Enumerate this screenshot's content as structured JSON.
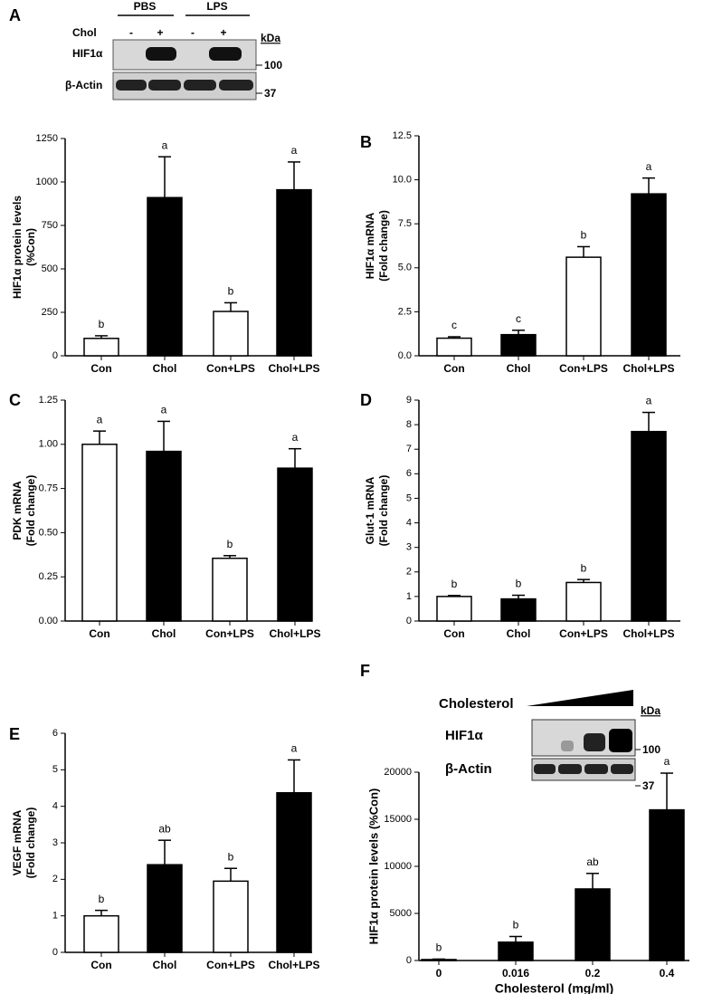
{
  "chart_data": [
    {
      "type": "bar",
      "panel": "A",
      "ylabel": [
        "HIF1α protein levels",
        "(%Con)"
      ],
      "categories": [
        "Con",
        "Chol",
        "Con+LPS",
        "Chol+LPS"
      ],
      "values": [
        100,
        910,
        255,
        955
      ],
      "errors": [
        15,
        235,
        50,
        160
      ],
      "annotations": [
        "b",
        "a",
        "b",
        "a"
      ],
      "colors": [
        "#ffffff",
        "#000000",
        "#ffffff",
        "#000000"
      ],
      "ylim": [
        0,
        1250
      ],
      "yticks": [
        0,
        250,
        500,
        750,
        1000,
        1250
      ]
    },
    {
      "type": "bar",
      "panel": "B",
      "ylabel": [
        "HIF1α mRNA",
        "(Fold change)"
      ],
      "categories": [
        "Con",
        "Chol",
        "Con+LPS",
        "Chol+LPS"
      ],
      "values": [
        1.0,
        1.2,
        5.6,
        9.2
      ],
      "errors": [
        0.08,
        0.25,
        0.6,
        0.9
      ],
      "annotations": [
        "c",
        "c",
        "b",
        "a"
      ],
      "colors": [
        "#ffffff",
        "#000000",
        "#ffffff",
        "#000000"
      ],
      "ylim": [
        0,
        12.5
      ],
      "yticks": [
        {
          "value": 0,
          "label": "0.0"
        },
        2.5,
        {
          "value": 5,
          "label": "5.0"
        },
        7.5,
        {
          "value": 10,
          "label": "10.0"
        },
        12.5
      ]
    },
    {
      "type": "bar",
      "panel": "C",
      "ylabel": [
        "PDK mRNA",
        "(Fold change)"
      ],
      "categories": [
        "Con",
        "Chol",
        "Con+LPS",
        "Chol+LPS"
      ],
      "values": [
        1.0,
        0.96,
        0.355,
        0.865
      ],
      "errors": [
        0.075,
        0.17,
        0.015,
        0.11
      ],
      "annotations": [
        "a",
        "a",
        "b",
        "a"
      ],
      "colors": [
        "#ffffff",
        "#000000",
        "#ffffff",
        "#000000"
      ],
      "ylim": [
        0,
        1.25
      ],
      "yticks": [
        {
          "value": 0,
          "label": "0.00"
        },
        0.25,
        {
          "value": 0.5,
          "label": "0.50"
        },
        0.75,
        {
          "value": 1,
          "label": "1.00"
        },
        1.25
      ]
    },
    {
      "type": "bar",
      "panel": "D",
      "ylabel": [
        "Glut-1 mRNA",
        "(Fold change)"
      ],
      "categories": [
        "Con",
        "Chol",
        "Con+LPS",
        "Chol+LPS"
      ],
      "values": [
        1.0,
        0.9,
        1.57,
        7.72
      ],
      "errors": [
        0.04,
        0.15,
        0.12,
        0.78
      ],
      "annotations": [
        "b",
        "b",
        "b",
        "a"
      ],
      "colors": [
        "#ffffff",
        "#000000",
        "#ffffff",
        "#000000"
      ],
      "ylim": [
        0,
        9
      ],
      "yticks": [
        0,
        1,
        2,
        3,
        4,
        5,
        6,
        7,
        8,
        9
      ]
    },
    {
      "type": "bar",
      "panel": "E",
      "ylabel": [
        "VEGF mRNA",
        "(Fold change)"
      ],
      "categories": [
        "Con",
        "Chol",
        "Con+LPS",
        "Chol+LPS"
      ],
      "values": [
        1.0,
        2.4,
        1.95,
        4.37
      ],
      "errors": [
        0.15,
        0.67,
        0.35,
        0.9
      ],
      "annotations": [
        "b",
        "ab",
        "b",
        "a"
      ],
      "colors": [
        "#ffffff",
        "#000000",
        "#ffffff",
        "#000000"
      ],
      "ylim": [
        0,
        6
      ],
      "yticks": [
        0,
        1,
        2,
        3,
        4,
        5,
        6
      ]
    },
    {
      "type": "bar",
      "panel": "F",
      "ylabel": [
        "HIF1α protein levels (%Con)"
      ],
      "xlabel": "Cholesterol (mg/ml)",
      "categories": [
        "0",
        "0.016",
        "0.2",
        "0.4"
      ],
      "values": [
        100,
        1950,
        7600,
        16000
      ],
      "errors": [
        50,
        600,
        1650,
        3900
      ],
      "annotations": [
        "b",
        "b",
        "ab",
        "a"
      ],
      "colors": [
        "#000000",
        "#000000",
        "#000000",
        "#000000"
      ],
      "ylim": [
        0,
        20000
      ],
      "yticks": [
        0,
        5000,
        10000,
        15000,
        20000
      ]
    }
  ],
  "blots": [
    {
      "headers": [
        "PBS",
        "LPS"
      ],
      "row_label": "Chol",
      "signs": [
        "-",
        "+",
        "-",
        "+"
      ],
      "bands": [
        "HIF1α",
        "β-Actin"
      ],
      "unit": "kDa",
      "markers": [
        100,
        37
      ]
    },
    {
      "title": "Cholesterol",
      "bands": [
        "HIF1α",
        "β-Actin"
      ],
      "unit": "kDa",
      "markers": [
        100,
        37
      ]
    }
  ]
}
